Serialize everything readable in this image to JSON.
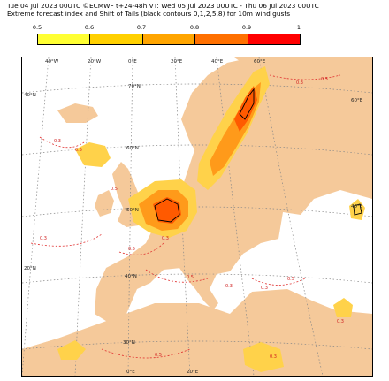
{
  "title": {
    "line1": "Tue 04 Jul 2023 00UTC ©ECMWF t+24-48h  VT: Wed 05 Jul 2023 00UTC - Thu 06 Jul 2023 00UTC",
    "line2": "Extreme forecast index and Shift of Tails (black contours 0,1,2,5,8) for 10m wind gusts"
  },
  "colorbar": {
    "ticks": [
      "0.5",
      "0.6",
      "0.7",
      "0.8",
      "0.9",
      "1"
    ],
    "colors": [
      "#ffff33",
      "#ffd000",
      "#ffa500",
      "#ff7000",
      "#ff0000"
    ]
  },
  "map": {
    "colors": {
      "sea": "#ffffff",
      "land": "#f5c99a",
      "efi_low": "#ffd24a",
      "efi_mid": "#ff9a1a",
      "efi_high": "#ff5a00",
      "negative_contour": "#e03030",
      "grid": "#888888"
    },
    "top_lon_labels": [
      "40°W",
      "20°W",
      "0°E",
      "20°E",
      "40°E",
      "60°E"
    ],
    "bottom_lon_labels": [
      "0°E",
      "20°E"
    ],
    "left_lat_labels": [
      "40°N",
      "20°N"
    ],
    "right_lat_labels": [
      "60°E",
      "40°E"
    ],
    "inner_lat_labels": [
      "70°N",
      "60°N",
      "50°N",
      "40°N",
      "30°N"
    ],
    "contour_labels": [
      "0.3",
      "0.5",
      "0.5",
      "0.3",
      "0.5",
      "0.3",
      "0.5",
      "0.3",
      "0.3",
      "0.5",
      "0.3",
      "0.5",
      "0.5",
      "0.3",
      "0.3"
    ]
  }
}
